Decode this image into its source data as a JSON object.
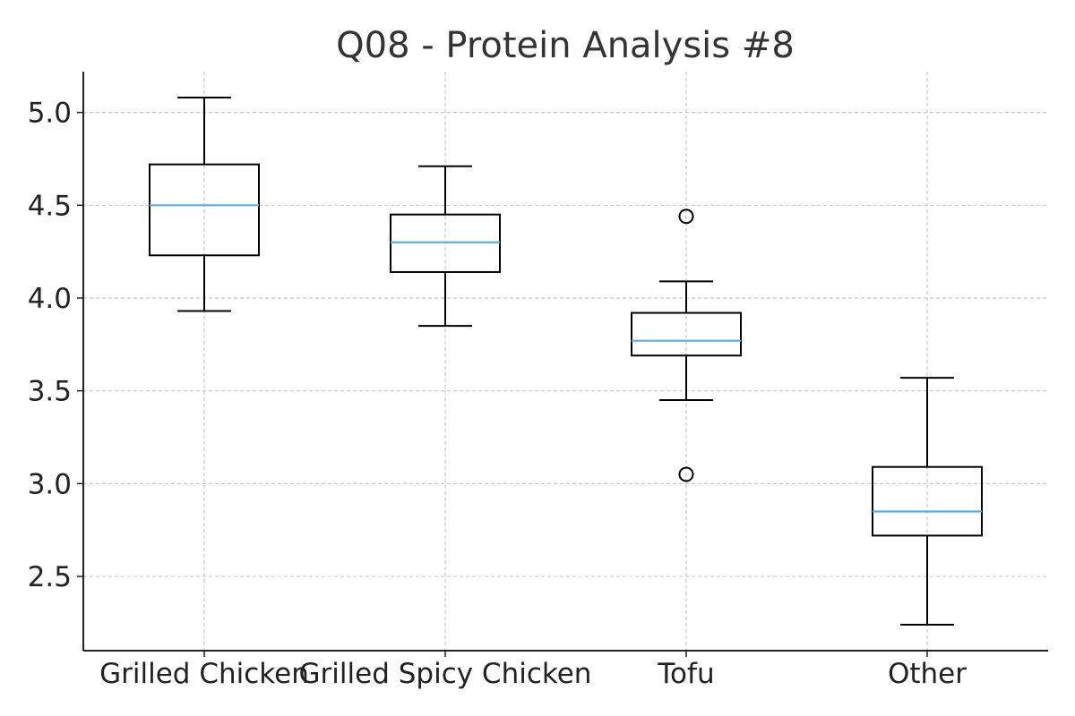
{
  "chart_data": {
    "type": "boxplot",
    "title": "Q08 - Protein Analysis #8",
    "xlabel": "",
    "ylabel": "",
    "ylim": [
      2.1,
      5.22
    ],
    "yticks": [
      2.5,
      3.0,
      3.5,
      4.0,
      4.5,
      5.0
    ],
    "ytick_labels": [
      "2.5",
      "3.0",
      "3.5",
      "4.0",
      "4.5",
      "5.0"
    ],
    "grid": true,
    "categories": [
      "Grilled Chicken",
      "Grilled Spicy Chicken",
      "Tofu",
      "Other"
    ],
    "boxes": [
      {
        "category": "Grilled Chicken",
        "whisker_low": 3.93,
        "q1": 4.23,
        "median": 4.5,
        "q3": 4.72,
        "whisker_high": 5.08,
        "outliers": []
      },
      {
        "category": "Grilled Spicy Chicken",
        "whisker_low": 3.85,
        "q1": 4.14,
        "median": 4.3,
        "q3": 4.45,
        "whisker_high": 4.71,
        "outliers": []
      },
      {
        "category": "Tofu",
        "whisker_low": 3.45,
        "q1": 3.69,
        "median": 3.77,
        "q3": 3.92,
        "whisker_high": 4.09,
        "outliers": [
          4.44,
          3.05
        ]
      },
      {
        "category": "Other",
        "whisker_low": 2.24,
        "q1": 2.72,
        "median": 2.85,
        "q3": 3.09,
        "whisker_high": 3.57,
        "outliers": []
      }
    ],
    "colors": {
      "box": "#000000",
      "median": "#5aafdf",
      "grid": "#c8c8c8",
      "axis": "#222222",
      "title": "#333333"
    }
  }
}
